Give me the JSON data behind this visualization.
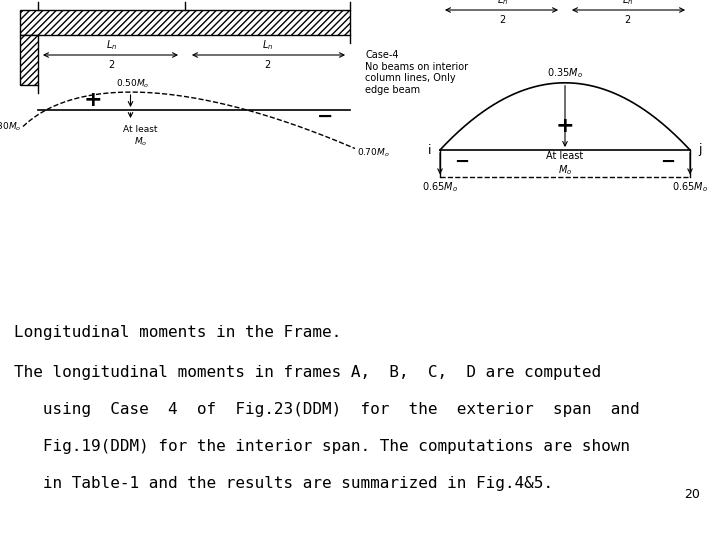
{
  "title_line1": "Longitudinal moments in the Frame.",
  "title_line2": "The longitudinal moments in frames A,  B,  C,  D are computed",
  "title_line3": "   using  Case  4  of  Fig.23(DDM)  for  the  exterior  span  and",
  "title_line4": "   Fig.19(DDM) for the interior span. The computations are shown",
  "title_line5": "   in Table-1 and the results are summarized in Fig.4&5.",
  "page_num": "20",
  "bg_color": "#ffffff",
  "text_color": "#000000"
}
